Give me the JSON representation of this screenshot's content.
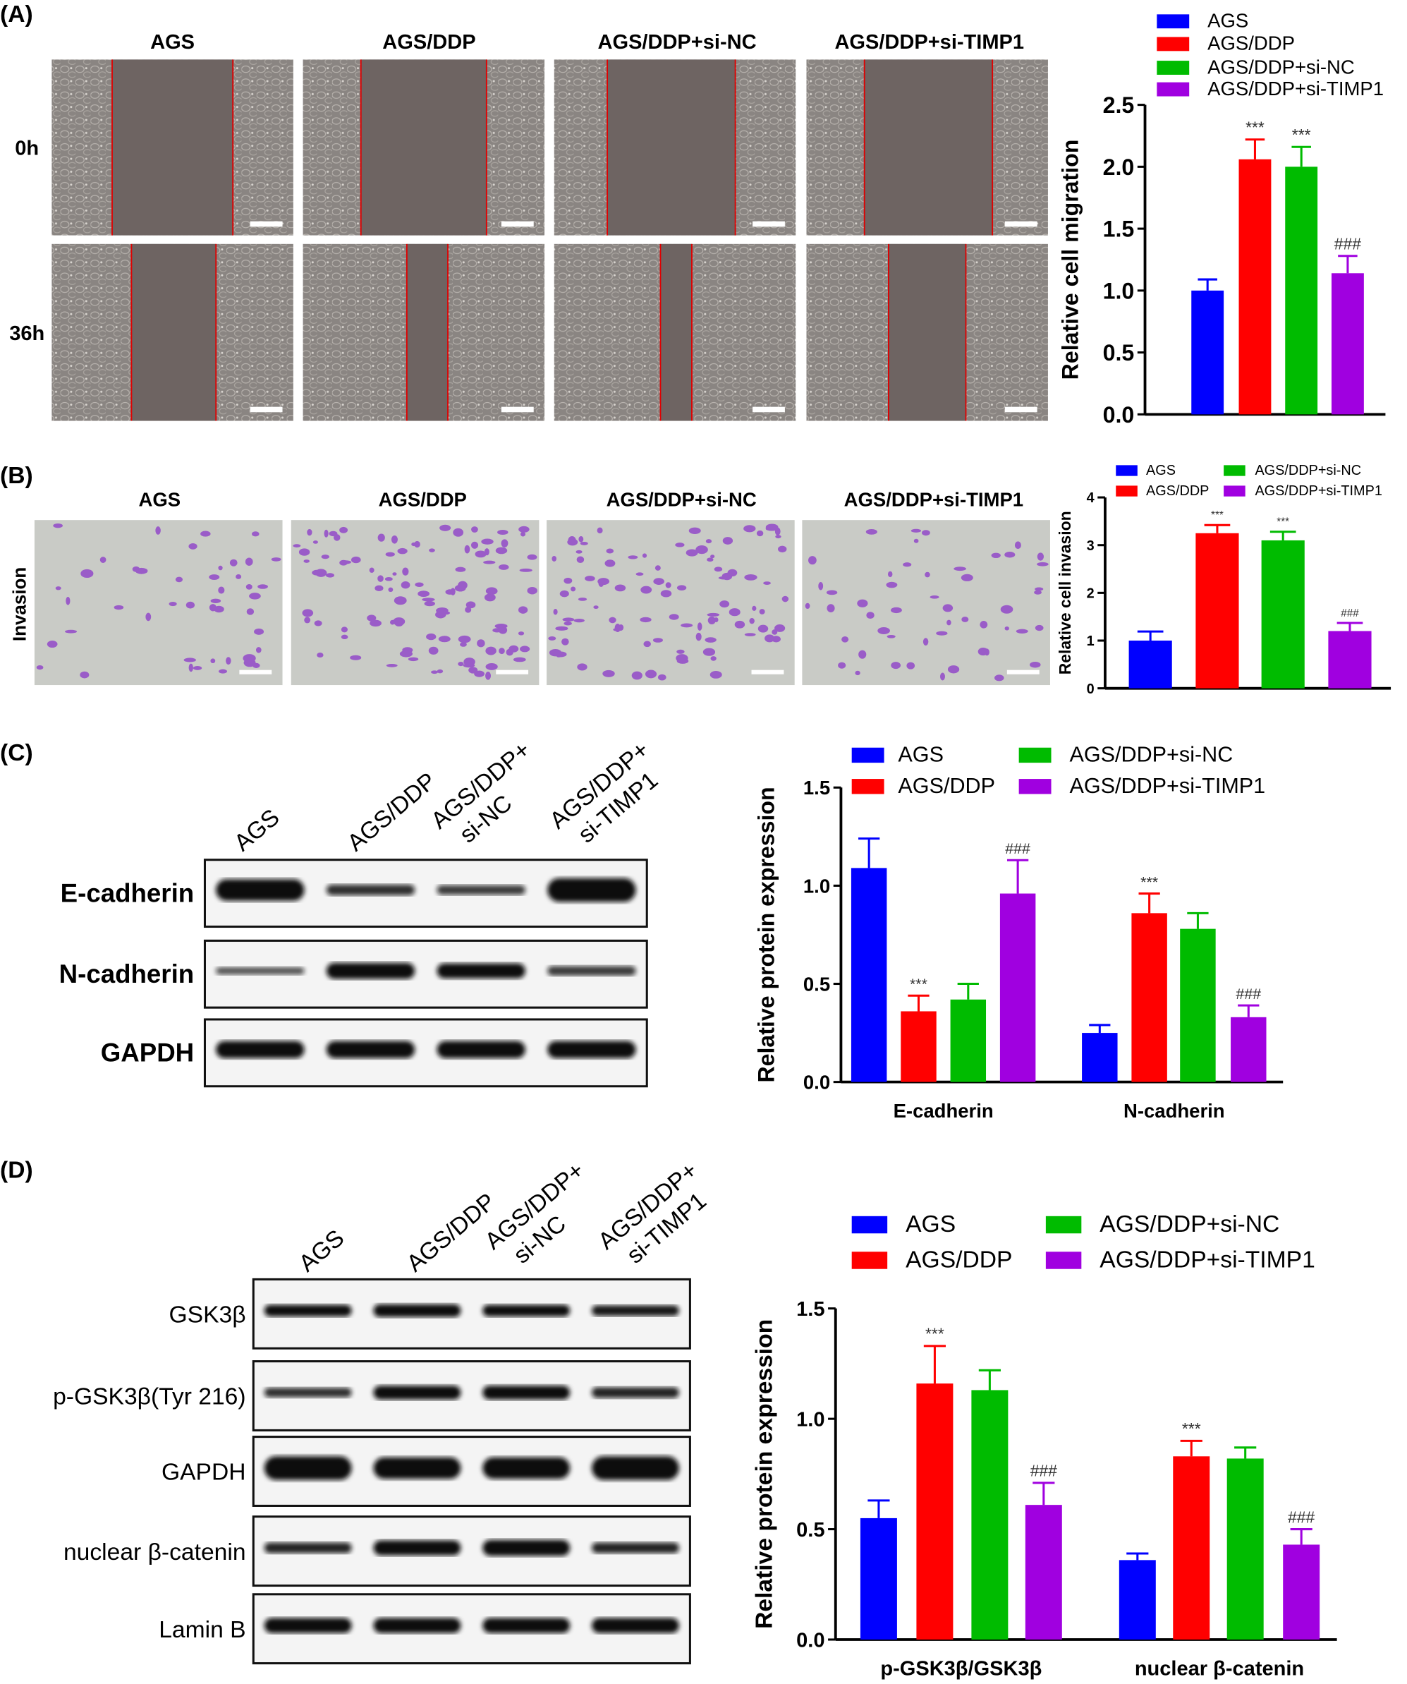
{
  "panels": {
    "A": {
      "label": "(A)",
      "columns": [
        "AGS",
        "AGS/DDP",
        "AGS/DDP+si-NC",
        "AGS/DDP+si-TIMP1"
      ],
      "rows": [
        "0h",
        "36h"
      ]
    },
    "B": {
      "label": "(B)",
      "columns": [
        "AGS",
        "AGS/DDP",
        "AGS/DDP+si-NC",
        "AGS/DDP+si-TIMP1"
      ],
      "row_label": "Invasion"
    },
    "C": {
      "label": "(C)",
      "columns": [
        [
          "AGS"
        ],
        [
          "AGS/DDP"
        ],
        [
          "AGS/DDP+",
          "si-NC"
        ],
        [
          "AGS/DDP+",
          "si-TIMP1"
        ]
      ],
      "rows": [
        "E-cadherin",
        "N-cadherin",
        "GAPDH"
      ]
    },
    "D": {
      "label": "(D)",
      "columns": [
        [
          "AGS"
        ],
        [
          "AGS/DDP"
        ],
        [
          "AGS/DDP+",
          "si-NC"
        ],
        [
          "AGS/DDP+",
          "si-TIMP1"
        ]
      ],
      "rows": [
        "GSK3β",
        "p-GSK3β(Tyr 216)",
        "GAPDH",
        "nuclear β-catenin",
        "Lamin B"
      ]
    }
  },
  "chart_data": [
    {
      "type": "bar",
      "panel": "A",
      "ylabel": "Relative cell migration",
      "ylim": [
        0,
        2.5
      ],
      "yticks": [
        "0.0",
        "0.5",
        "1.0",
        "1.5",
        "2.0",
        "2.5"
      ],
      "categories": [
        ""
      ],
      "legend": "top",
      "series": [
        {
          "name": "AGS",
          "color": "#0000ff",
          "values": [
            1.0
          ],
          "errors": [
            0.09
          ],
          "annotations": [
            ""
          ]
        },
        {
          "name": "AGS/DDP",
          "color": "#ff0000",
          "values": [
            2.06
          ],
          "errors": [
            0.16
          ],
          "annotations": [
            "***"
          ]
        },
        {
          "name": "AGS/DDP+si-NC",
          "color": "#00bb00",
          "values": [
            2.0
          ],
          "errors": [
            0.16
          ],
          "annotations": [
            "***"
          ]
        },
        {
          "name": "AGS/DDP+si-TIMP1",
          "color": "#a000e0",
          "values": [
            1.14
          ],
          "errors": [
            0.14
          ],
          "annotations": [
            "###"
          ]
        }
      ]
    },
    {
      "type": "bar",
      "panel": "B",
      "ylabel": "Relative cell invasion",
      "ylim": [
        0,
        4
      ],
      "yticks": [
        "0",
        "1",
        "2",
        "3",
        "4"
      ],
      "categories": [
        ""
      ],
      "legend": "top",
      "series": [
        {
          "name": "AGS",
          "color": "#0000ff",
          "values": [
            1.0
          ],
          "errors": [
            0.19
          ],
          "annotations": [
            ""
          ]
        },
        {
          "name": "AGS/DDP",
          "color": "#ff0000",
          "values": [
            3.25
          ],
          "errors": [
            0.17
          ],
          "annotations": [
            "***"
          ]
        },
        {
          "name": "AGS/DDP+si-NC",
          "color": "#00bb00",
          "values": [
            3.1
          ],
          "errors": [
            0.18
          ],
          "annotations": [
            "***"
          ]
        },
        {
          "name": "AGS/DDP+si-TIMP1",
          "color": "#a000e0",
          "values": [
            1.2
          ],
          "errors": [
            0.17
          ],
          "annotations": [
            "###"
          ]
        }
      ]
    },
    {
      "type": "bar",
      "panel": "C",
      "ylabel": "Relative protein expression",
      "ylim": [
        0,
        1.5
      ],
      "yticks": [
        "0.0",
        "0.5",
        "1.0",
        "1.5"
      ],
      "categories": [
        "E-cadherin",
        "N-cadherin"
      ],
      "legend": "top",
      "series": [
        {
          "name": "AGS",
          "color": "#0000ff",
          "values": [
            1.09,
            0.25
          ],
          "errors": [
            0.15,
            0.04
          ],
          "annotations": [
            "",
            ""
          ]
        },
        {
          "name": "AGS/DDP",
          "color": "#ff0000",
          "values": [
            0.36,
            0.86
          ],
          "errors": [
            0.08,
            0.1
          ],
          "annotations": [
            "***",
            "***"
          ]
        },
        {
          "name": "AGS/DDP+si-NC",
          "color": "#00bb00",
          "values": [
            0.42,
            0.78
          ],
          "errors": [
            0.08,
            0.08
          ],
          "annotations": [
            "",
            ""
          ]
        },
        {
          "name": "AGS/DDP+si-TIMP1",
          "color": "#a000e0",
          "values": [
            0.96,
            0.33
          ],
          "errors": [
            0.17,
            0.06
          ],
          "annotations": [
            "###",
            "###"
          ]
        }
      ]
    },
    {
      "type": "bar",
      "panel": "D",
      "ylabel": "Relative protein expression",
      "ylim": [
        0,
        1.5
      ],
      "yticks": [
        "0.0",
        "0.5",
        "1.0",
        "1.5"
      ],
      "categories": [
        "p-GSK3β/GSK3β",
        "nuclear β-catenin"
      ],
      "legend": "top",
      "series": [
        {
          "name": "AGS",
          "color": "#0000ff",
          "values": [
            0.55,
            0.36
          ],
          "errors": [
            0.08,
            0.03
          ],
          "annotations": [
            "",
            ""
          ]
        },
        {
          "name": "AGS/DDP",
          "color": "#ff0000",
          "values": [
            1.16,
            0.83
          ],
          "errors": [
            0.17,
            0.07
          ],
          "annotations": [
            "***",
            "***"
          ]
        },
        {
          "name": "AGS/DDP+si-NC",
          "color": "#00bb00",
          "values": [
            1.13,
            0.82
          ],
          "errors": [
            0.09,
            0.05
          ],
          "annotations": [
            "",
            ""
          ]
        },
        {
          "name": "AGS/DDP+si-TIMP1",
          "color": "#a000e0",
          "values": [
            0.61,
            0.43
          ],
          "errors": [
            0.1,
            0.07
          ],
          "annotations": [
            "###",
            "###"
          ]
        }
      ]
    }
  ]
}
